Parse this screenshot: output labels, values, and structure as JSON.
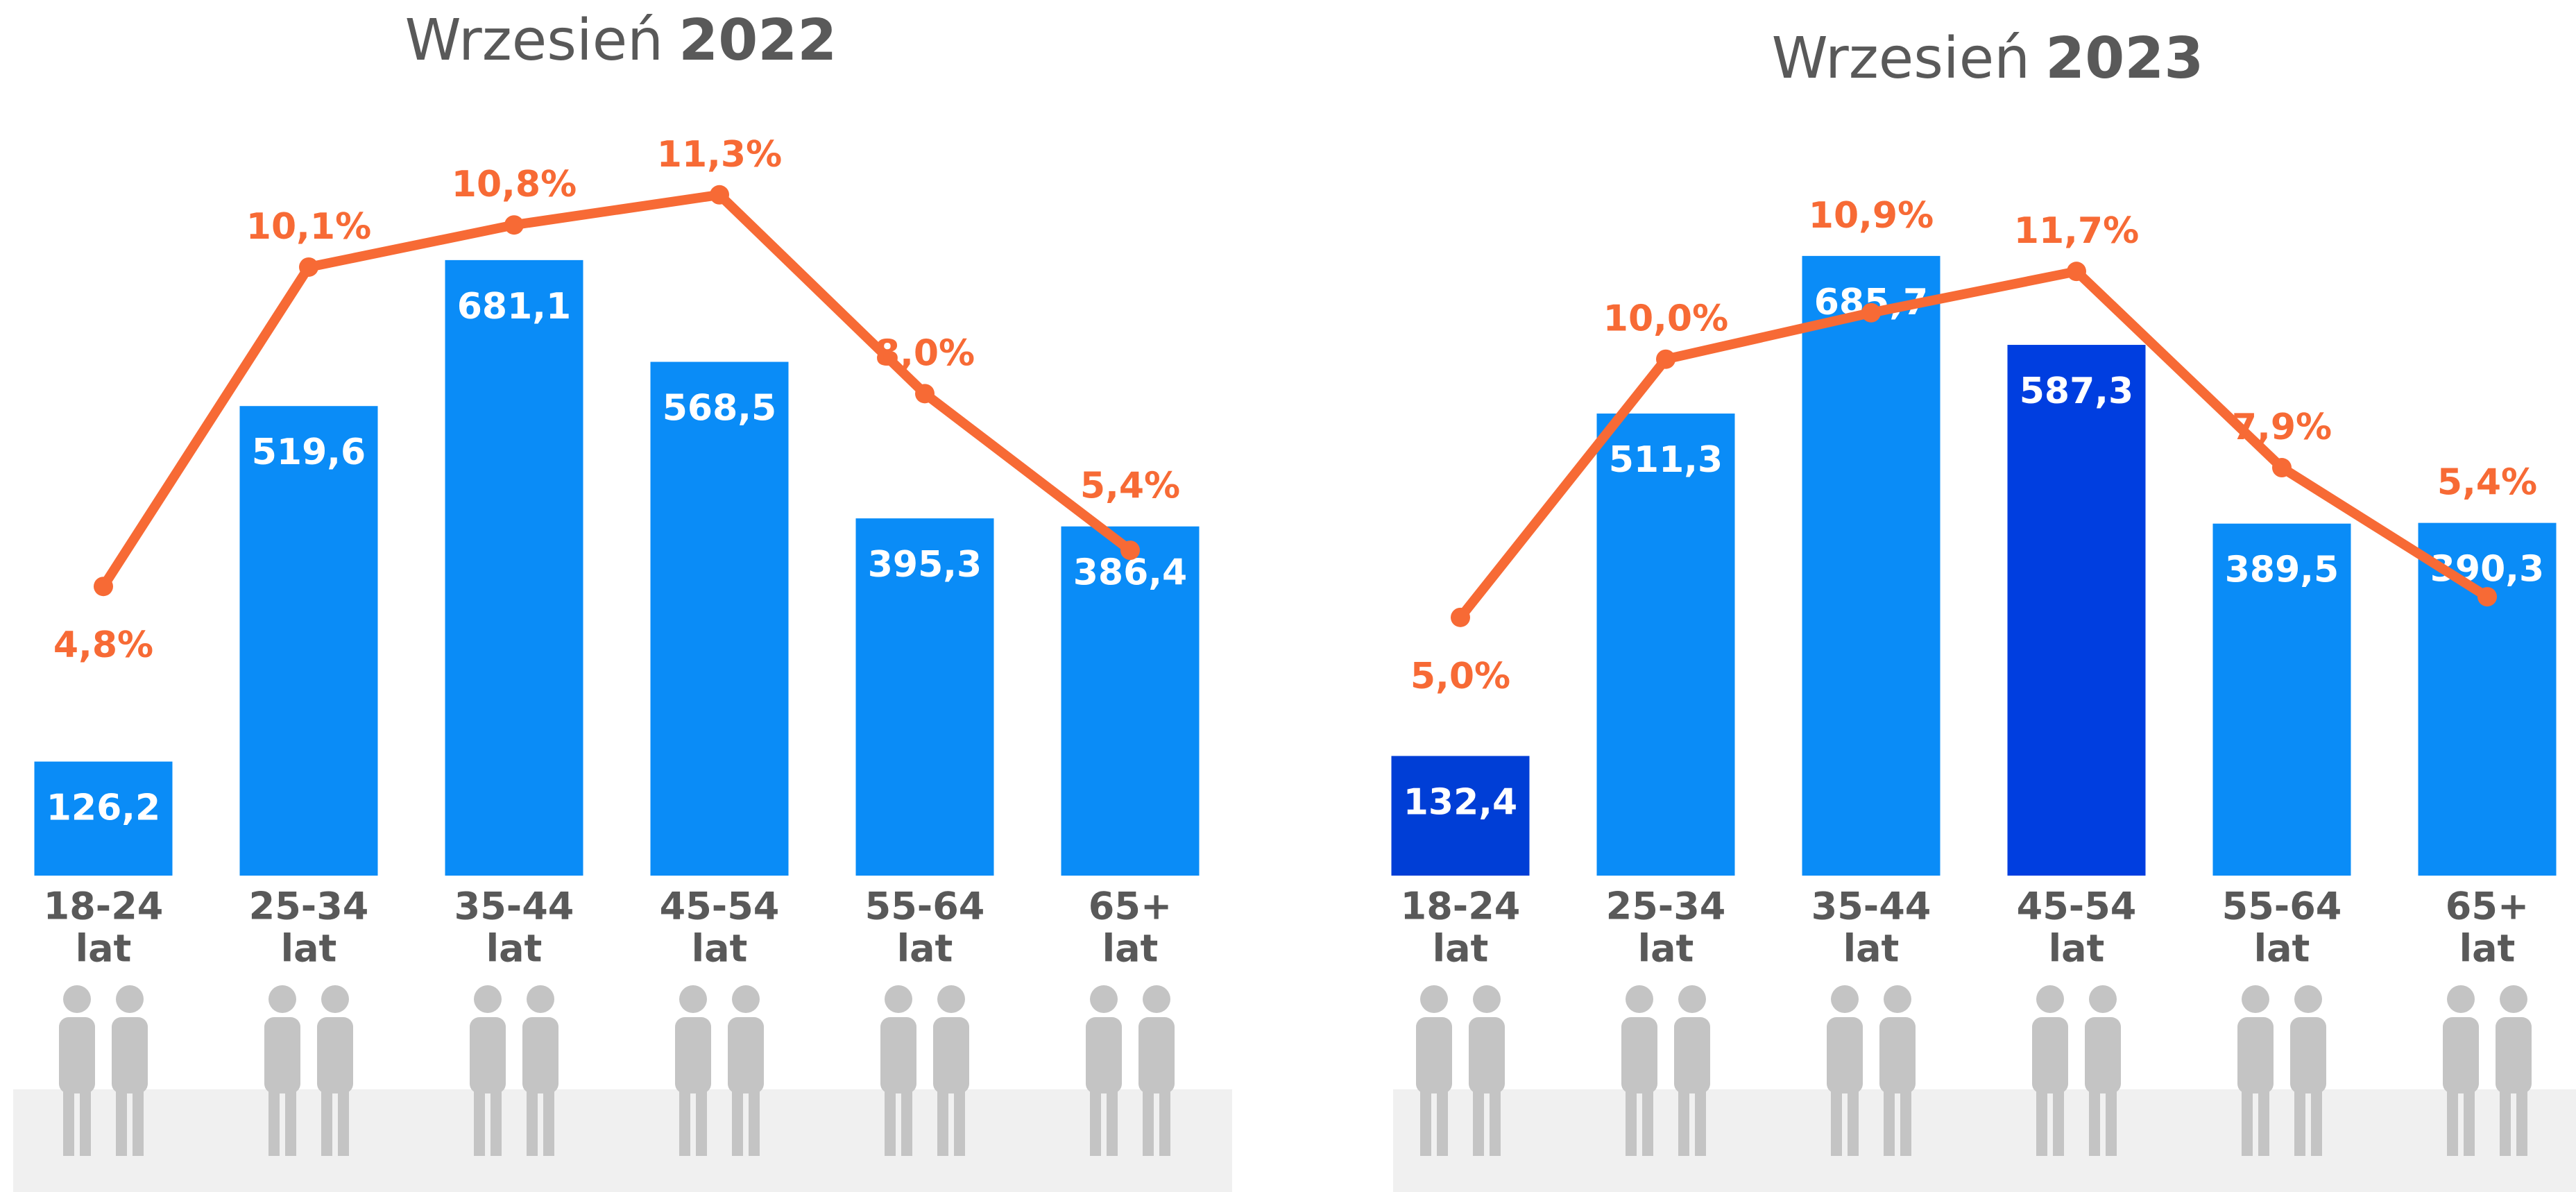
{
  "chart_data": [
    {
      "type": "bar",
      "title": "Wrzesień",
      "title_year": "2022",
      "categories": [
        [
          "18-24",
          "lat"
        ],
        [
          "25-34",
          "lat"
        ],
        [
          "35-44",
          "lat"
        ],
        [
          "45-54",
          "lat"
        ],
        [
          "55-64",
          "lat"
        ],
        [
          "65+",
          "lat"
        ]
      ],
      "ylim": [
        0,
        800
      ],
      "y2lim": [
        0,
        12
      ],
      "series": [
        {
          "type": "bar",
          "values": [
            126.2,
            519.6,
            681.1,
            568.5,
            395.3,
            386.4
          ],
          "value_labels": [
            "126,2",
            "519,6",
            "681,1",
            "568,5",
            "395,3",
            "386,4"
          ],
          "colors": [
            "#0a8cf7",
            "#0a8cf7",
            "#0a8cf7",
            "#0a8cf7",
            "#0a8cf7",
            "#0a8cf7"
          ]
        },
        {
          "type": "line",
          "axis": "y2",
          "color": "#f76a35",
          "values": [
            4.8,
            10.1,
            10.8,
            11.3,
            8.0,
            5.4
          ],
          "value_labels": [
            "4,8%",
            "10,1%",
            "10,8%",
            "11,3%",
            "8,0%",
            "5,4%"
          ]
        }
      ]
    },
    {
      "type": "bar",
      "title": "Wrzesień",
      "title_year": "2023",
      "categories": [
        [
          "18-24",
          "lat"
        ],
        [
          "25-34",
          "lat"
        ],
        [
          "35-44",
          "lat"
        ],
        [
          "45-54",
          "lat"
        ],
        [
          "55-64",
          "lat"
        ],
        [
          "65+",
          "lat"
        ]
      ],
      "ylim": [
        0,
        800
      ],
      "y2lim": [
        0,
        14
      ],
      "series": [
        {
          "type": "bar",
          "values": [
            132.4,
            511.3,
            685.7,
            587.3,
            389.5,
            390.3
          ],
          "value_labels": [
            "132,4",
            "511,3",
            "685,7",
            "587,3",
            "389,5",
            "390,3"
          ],
          "colors": [
            "#003ed6",
            "#0a8cf7",
            "#0a8cf7",
            "#003ee0",
            "#0a8cf7",
            "#0a8cf7"
          ]
        },
        {
          "type": "line",
          "axis": "y2",
          "color": "#f76a35",
          "values": [
            5.0,
            10.0,
            10.9,
            11.7,
            7.9,
            5.4
          ],
          "value_labels": [
            "5,0%",
            "10,0%",
            "10,9%",
            "11,7%",
            "7,9%",
            "5,4%"
          ]
        }
      ]
    }
  ]
}
